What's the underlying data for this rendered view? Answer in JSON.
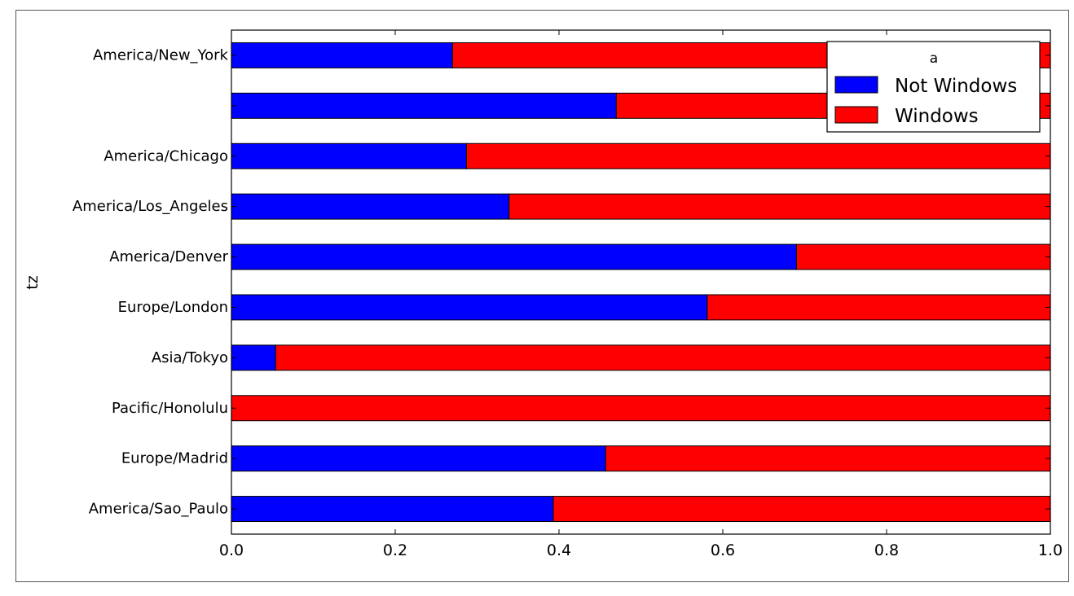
{
  "chart_data": {
    "type": "bar",
    "orientation": "horizontal",
    "stacked": true,
    "normalized": true,
    "ylabel": "tz",
    "xlabel": "",
    "xlim": [
      0.0,
      1.0
    ],
    "xticks": [
      "0.0",
      "0.2",
      "0.4",
      "0.6",
      "0.8",
      "1.0"
    ],
    "grid": false,
    "categories": [
      "America/New_York",
      "",
      "America/Chicago",
      "America/Los_Angeles",
      "America/Denver",
      "Europe/London",
      "Asia/Tokyo",
      "Pacific/Honolulu",
      "Europe/Madrid",
      "America/Sao_Paulo"
    ],
    "series": [
      {
        "name": "Not Windows",
        "color": "#0000ff",
        "values": [
          0.27,
          0.47,
          0.287,
          0.339,
          0.69,
          0.581,
          0.054,
          0.0,
          0.457,
          0.393
        ]
      },
      {
        "name": "Windows",
        "color": "#ff0000",
        "values": [
          0.73,
          0.53,
          0.713,
          0.661,
          0.31,
          0.419,
          0.946,
          1.0,
          0.543,
          0.607
        ]
      }
    ],
    "legend": {
      "title": "a",
      "placement": "top-right"
    }
  }
}
